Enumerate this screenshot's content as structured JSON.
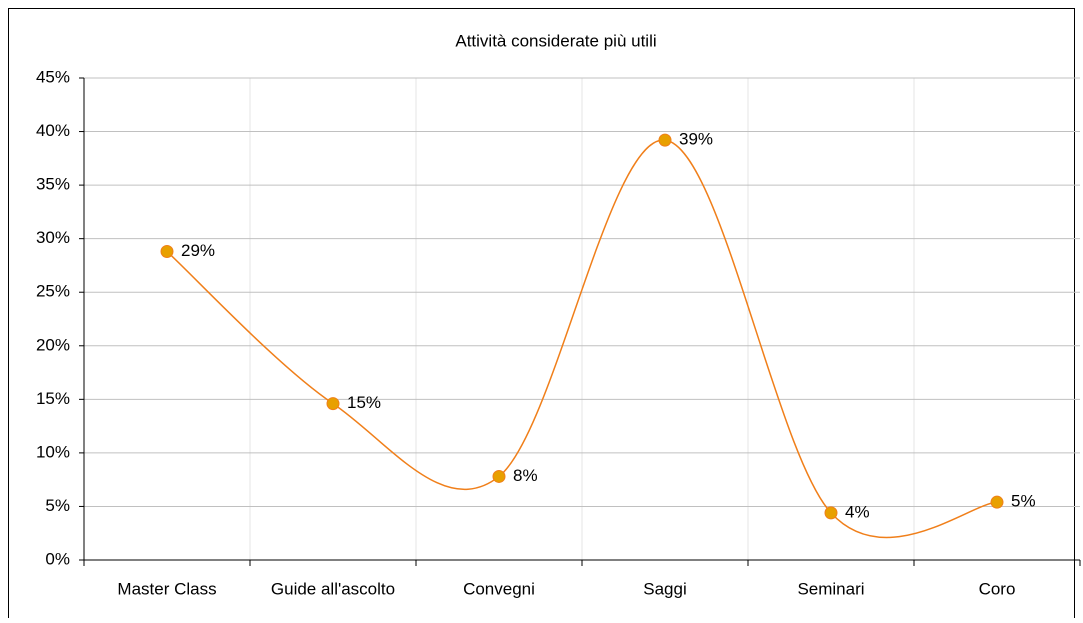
{
  "chart_data": {
    "type": "line",
    "title": "Attività considerate più utili",
    "categories": [
      "Master Class",
      "Guide all'ascolto",
      "Convegni",
      "Saggi",
      "Seminari",
      "Coro"
    ],
    "series": [
      {
        "name": "Attività",
        "color": "#f07f1a",
        "marker_color": "#e8a000",
        "values": [
          28.8,
          14.6,
          7.8,
          39.2,
          4.4,
          5.4
        ],
        "value_labels": [
          "29%",
          "15%",
          "8%",
          "39%",
          "4%",
          "5%"
        ]
      }
    ],
    "smooth": true,
    "ylim": [
      0,
      45
    ],
    "yticks": [
      {
        "value": 0,
        "label": "0%"
      },
      {
        "value": 5,
        "label": "5%"
      },
      {
        "value": 10,
        "label": "10%"
      },
      {
        "value": 15,
        "label": "15%"
      },
      {
        "value": 20,
        "label": "20%"
      },
      {
        "value": 25,
        "label": "25%"
      },
      {
        "value": 30,
        "label": "30%"
      },
      {
        "value": 35,
        "label": "35%"
      },
      {
        "value": 40,
        "label": "40%"
      },
      {
        "value": 45,
        "label": "45%"
      }
    ],
    "grid": true
  }
}
